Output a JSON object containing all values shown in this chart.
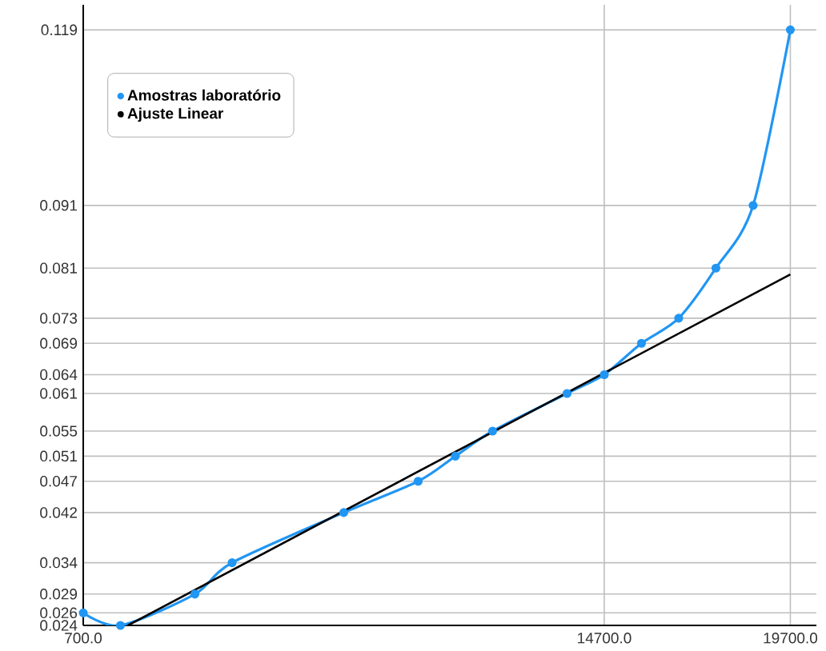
{
  "chart_data": {
    "type": "line",
    "x": [
      700,
      1700,
      3700,
      4700,
      7700,
      9700,
      10700,
      11700,
      13700,
      14700,
      15700,
      16700,
      17700,
      18700,
      19700
    ],
    "series": [
      {
        "name": "Amostras laboratório",
        "color": "#2196f3",
        "marker": "circle",
        "values": [
          0.026,
          0.024,
          0.029,
          0.034,
          0.042,
          0.047,
          0.051,
          0.055,
          0.061,
          0.064,
          0.069,
          0.073,
          0.081,
          0.091,
          0.119
        ]
      },
      {
        "name": "Ajuste Linear",
        "color": "#000000",
        "marker": "none",
        "x": [
          1900,
          19700
        ],
        "values": [
          0.024,
          0.08
        ]
      }
    ],
    "xlim": [
      700,
      20400
    ],
    "ylim": [
      0.024,
      0.123
    ],
    "xticks": [
      {
        "value": 700,
        "label": "700.0"
      },
      {
        "value": 14700,
        "label": "14700.0"
      },
      {
        "value": 19700,
        "label": "19700.0"
      }
    ],
    "yticks": [
      0.024,
      0.026,
      0.029,
      0.034,
      0.042,
      0.047,
      0.051,
      0.055,
      0.061,
      0.064,
      0.069,
      0.073,
      0.081,
      0.091,
      0.119
    ],
    "grid": true,
    "legend": "top left"
  }
}
